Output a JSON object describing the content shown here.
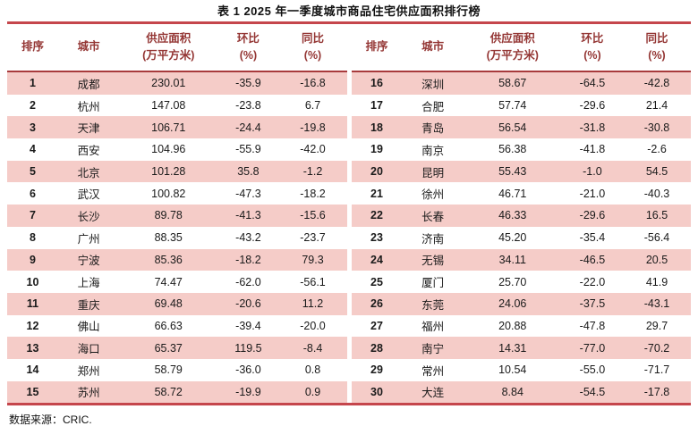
{
  "title": "表 1 2025 年一季度城市商品住宅供应面积排行榜",
  "source_note": "数据来源：CRIC.",
  "colors": {
    "line_red": "#C5464C",
    "header_underline_red": "#A83A3C",
    "header_text_red": "#943634",
    "stripe_pink": "#F5CCC8",
    "body_text": "#1A1A1A"
  },
  "columns": {
    "rank": "排序",
    "city": "城市",
    "supply_line1": "供应面积",
    "supply_line2": "(万平方米)",
    "mom_line1": "环比",
    "mom_line2": "(%)",
    "yoy_line1": "同比",
    "yoy_line2": "(%)"
  },
  "left_rows": [
    {
      "rank": "1",
      "city": "成都",
      "supply": "230.01",
      "mom": "-35.9",
      "yoy": "-16.8"
    },
    {
      "rank": "2",
      "city": "杭州",
      "supply": "147.08",
      "mom": "-23.8",
      "yoy": "6.7"
    },
    {
      "rank": "3",
      "city": "天津",
      "supply": "106.71",
      "mom": "-24.4",
      "yoy": "-19.8"
    },
    {
      "rank": "4",
      "city": "西安",
      "supply": "104.96",
      "mom": "-55.9",
      "yoy": "-42.0"
    },
    {
      "rank": "5",
      "city": "北京",
      "supply": "101.28",
      "mom": "35.8",
      "yoy": "-1.2"
    },
    {
      "rank": "6",
      "city": "武汉",
      "supply": "100.82",
      "mom": "-47.3",
      "yoy": "-18.2"
    },
    {
      "rank": "7",
      "city": "长沙",
      "supply": "89.78",
      "mom": "-41.3",
      "yoy": "-15.6"
    },
    {
      "rank": "8",
      "city": "广州",
      "supply": "88.35",
      "mom": "-43.2",
      "yoy": "-23.7"
    },
    {
      "rank": "9",
      "city": "宁波",
      "supply": "85.36",
      "mom": "-18.2",
      "yoy": "79.3"
    },
    {
      "rank": "10",
      "city": "上海",
      "supply": "74.47",
      "mom": "-62.0",
      "yoy": "-56.1"
    },
    {
      "rank": "11",
      "city": "重庆",
      "supply": "69.48",
      "mom": "-20.6",
      "yoy": "11.2"
    },
    {
      "rank": "12",
      "city": "佛山",
      "supply": "66.63",
      "mom": "-39.4",
      "yoy": "-20.0"
    },
    {
      "rank": "13",
      "city": "海口",
      "supply": "65.37",
      "mom": "119.5",
      "yoy": "-8.4"
    },
    {
      "rank": "14",
      "city": "郑州",
      "supply": "58.79",
      "mom": "-36.0",
      "yoy": "0.8"
    },
    {
      "rank": "15",
      "city": "苏州",
      "supply": "58.72",
      "mom": "-19.9",
      "yoy": "0.9"
    }
  ],
  "right_rows": [
    {
      "rank": "16",
      "city": "深圳",
      "supply": "58.67",
      "mom": "-64.5",
      "yoy": "-42.8"
    },
    {
      "rank": "17",
      "city": "合肥",
      "supply": "57.74",
      "mom": "-29.6",
      "yoy": "21.4"
    },
    {
      "rank": "18",
      "city": "青岛",
      "supply": "56.54",
      "mom": "-31.8",
      "yoy": "-30.8"
    },
    {
      "rank": "19",
      "city": "南京",
      "supply": "56.38",
      "mom": "-41.8",
      "yoy": "-2.6"
    },
    {
      "rank": "20",
      "city": "昆明",
      "supply": "55.43",
      "mom": "-1.0",
      "yoy": "54.5"
    },
    {
      "rank": "21",
      "city": "徐州",
      "supply": "46.71",
      "mom": "-21.0",
      "yoy": "-40.3"
    },
    {
      "rank": "22",
      "city": "长春",
      "supply": "46.33",
      "mom": "-29.6",
      "yoy": "16.5"
    },
    {
      "rank": "23",
      "city": "济南",
      "supply": "45.20",
      "mom": "-35.4",
      "yoy": "-56.4"
    },
    {
      "rank": "24",
      "city": "无锡",
      "supply": "34.11",
      "mom": "-46.5",
      "yoy": "20.5"
    },
    {
      "rank": "25",
      "city": "厦门",
      "supply": "25.70",
      "mom": "-22.0",
      "yoy": "41.9"
    },
    {
      "rank": "26",
      "city": "东莞",
      "supply": "24.06",
      "mom": "-37.5",
      "yoy": "-43.1"
    },
    {
      "rank": "27",
      "city": "福州",
      "supply": "20.88",
      "mom": "-47.8",
      "yoy": "29.7"
    },
    {
      "rank": "28",
      "city": "南宁",
      "supply": "14.31",
      "mom": "-77.0",
      "yoy": "-70.2"
    },
    {
      "rank": "29",
      "city": "常州",
      "supply": "10.54",
      "mom": "-55.0",
      "yoy": "-71.7"
    },
    {
      "rank": "30",
      "city": "大连",
      "supply": "8.84",
      "mom": "-54.5",
      "yoy": "-17.8"
    }
  ]
}
